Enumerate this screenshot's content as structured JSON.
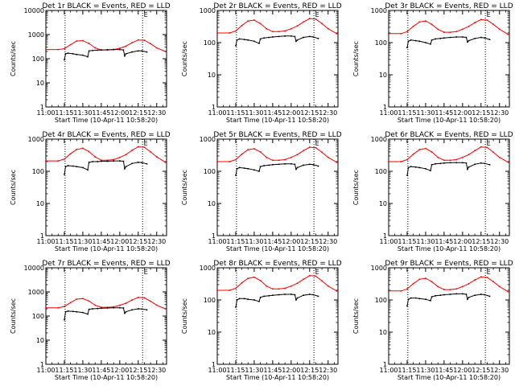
{
  "figure": {
    "x_tick_labels": [
      "11:00",
      "11:15",
      "11:30",
      "11:45",
      "12:00",
      "12:15",
      "12:30"
    ],
    "y_tick_labels": [
      "1",
      "10",
      "100",
      "1000",
      "10000"
    ],
    "vline_times_min": [
      15.6,
      78.5
    ],
    "colors": {
      "events": "#000000",
      "lld": "#ff0000",
      "axes": "#000000"
    }
  },
  "chart_data": [
    {
      "type": "line",
      "title": "Det 1r BLACK = Events, RED = LLD",
      "xlabel": "Start Time (10-Apr-11 10:58:20)",
      "ylabel": "Counts/sec",
      "xlim": [
        "11:00",
        "12:38"
      ],
      "ylim": [
        1,
        10000
      ],
      "yscale": "log",
      "ytop_label": "10000",
      "marker_label": "E",
      "series": [
        {
          "key": "LLD",
          "x": [
            "11:00",
            "11:10",
            "11:15",
            "11:20",
            "11:25",
            "11:30",
            "11:35",
            "11:40",
            "11:45",
            "11:50",
            "11:55",
            "12:00",
            "12:05",
            "12:10",
            "12:15",
            "12:20",
            "12:25",
            "12:30",
            "12:37"
          ],
          "y": [
            240,
            240,
            260,
            380,
            540,
            560,
            430,
            280,
            230,
            230,
            240,
            270,
            330,
            460,
            600,
            580,
            420,
            280,
            200
          ]
        },
        {
          "key": "Events",
          "x": [
            "11:15",
            "11:16",
            "11:18",
            "11:22",
            "11:25",
            "11:30",
            "11:34",
            "11:35",
            "11:38",
            "11:42",
            "11:45",
            "11:50",
            "11:55",
            "12:00",
            "12:03",
            "12:04",
            "12:05",
            "12:10",
            "12:15",
            "12:18",
            "12:22"
          ],
          "y": [
            90,
            160,
            170,
            160,
            150,
            140,
            120,
            210,
            220,
            225,
            230,
            235,
            240,
            240,
            230,
            130,
            160,
            190,
            210,
            210,
            190
          ]
        }
      ]
    },
    {
      "type": "line",
      "title": "Det 2r BLACK = Events, RED = LLD",
      "xlabel": "Start Time (10-Apr-11 10:58:20)",
      "ylabel": "Counts/sec",
      "xlim": [
        "11:00",
        "12:38"
      ],
      "ylim": [
        1,
        1000
      ],
      "yscale": "log",
      "ytop_label": "1000",
      "marker_label": "E",
      "series": [
        {
          "key": "LLD",
          "x": [
            "11:00",
            "11:10",
            "11:15",
            "11:20",
            "11:25",
            "11:30",
            "11:35",
            "11:40",
            "11:45",
            "11:50",
            "11:55",
            "12:00",
            "12:05",
            "12:10",
            "12:15",
            "12:20",
            "12:25",
            "12:30",
            "12:37"
          ],
          "y": [
            200,
            200,
            230,
            340,
            470,
            500,
            390,
            270,
            220,
            220,
            230,
            270,
            330,
            440,
            560,
            540,
            390,
            270,
            190
          ]
        },
        {
          "key": "Events",
          "x": [
            "11:15",
            "11:16",
            "11:18",
            "11:22",
            "11:25",
            "11:30",
            "11:34",
            "11:35",
            "11:38",
            "11:42",
            "11:45",
            "11:50",
            "11:55",
            "12:00",
            "12:03",
            "12:04",
            "12:05",
            "12:10",
            "12:15",
            "12:18",
            "12:22"
          ],
          "y": [
            80,
            120,
            130,
            125,
            120,
            110,
            95,
            130,
            140,
            145,
            150,
            155,
            160,
            160,
            155,
            110,
            120,
            145,
            155,
            150,
            135
          ]
        }
      ]
    },
    {
      "type": "line",
      "title": "Det 3r BLACK = Events, RED = LLD",
      "xlabel": "Start Time (10-Apr-11 10:58:20)",
      "ylabel": "Counts/sec",
      "xlim": [
        "11:00",
        "12:38"
      ],
      "ylim": [
        1,
        1000
      ],
      "yscale": "log",
      "ytop_label": "1000",
      "marker_label": "E",
      "series": [
        {
          "key": "LLD",
          "x": [
            "11:00",
            "11:10",
            "11:15",
            "11:20",
            "11:25",
            "11:30",
            "11:35",
            "11:40",
            "11:45",
            "11:50",
            "11:55",
            "12:00",
            "12:05",
            "12:10",
            "12:15",
            "12:20",
            "12:25",
            "12:30",
            "12:37"
          ],
          "y": [
            190,
            190,
            220,
            320,
            440,
            470,
            370,
            260,
            210,
            210,
            220,
            260,
            320,
            420,
            520,
            500,
            370,
            260,
            180
          ]
        },
        {
          "key": "Events",
          "x": [
            "11:15",
            "11:16",
            "11:18",
            "11:22",
            "11:25",
            "11:30",
            "11:34",
            "11:35",
            "11:38",
            "11:42",
            "11:45",
            "11:50",
            "11:55",
            "12:00",
            "12:03",
            "12:04",
            "12:05",
            "12:10",
            "12:15",
            "12:18",
            "12:22"
          ],
          "y": [
            70,
            110,
            120,
            115,
            110,
            100,
            90,
            120,
            130,
            135,
            140,
            145,
            150,
            150,
            145,
            105,
            115,
            135,
            145,
            140,
            125
          ]
        }
      ]
    },
    {
      "type": "line",
      "title": "Det 4r BLACK = Events, RED = LLD",
      "xlabel": "Start Time (10-Apr-11 10:58:20)",
      "ylabel": "Counts/sec",
      "xlim": [
        "11:00",
        "12:38"
      ],
      "ylim": [
        1,
        1000
      ],
      "yscale": "log",
      "ytop_label": "1000",
      "marker_label": "E",
      "series": [
        {
          "key": "LLD",
          "x": [
            "11:00",
            "11:10",
            "11:15",
            "11:20",
            "11:25",
            "11:30",
            "11:35",
            "11:40",
            "11:45",
            "11:50",
            "11:55",
            "12:00",
            "12:05",
            "12:10",
            "12:15",
            "12:20",
            "12:25",
            "12:30",
            "12:37"
          ],
          "y": [
            210,
            210,
            240,
            350,
            480,
            520,
            410,
            280,
            220,
            220,
            230,
            270,
            330,
            450,
            580,
            560,
            400,
            280,
            190
          ]
        },
        {
          "key": "Events",
          "x": [
            "11:15",
            "11:16",
            "11:18",
            "11:22",
            "11:25",
            "11:30",
            "11:34",
            "11:35",
            "11:38",
            "11:42",
            "11:45",
            "11:50",
            "11:55",
            "12:00",
            "12:03",
            "12:04",
            "12:05",
            "12:10",
            "12:15",
            "12:18",
            "12:22"
          ],
          "y": [
            80,
            140,
            150,
            145,
            140,
            130,
            110,
            190,
            200,
            200,
            205,
            205,
            210,
            210,
            205,
            120,
            140,
            175,
            190,
            185,
            170
          ]
        }
      ]
    },
    {
      "type": "line",
      "title": "Det 5r BLACK = Events, RED = LLD",
      "xlabel": "Start Time (10-Apr-11 10:58:20)",
      "ylabel": "Counts/sec",
      "xlim": [
        "11:00",
        "12:38"
      ],
      "ylim": [
        1,
        1000
      ],
      "yscale": "log",
      "ytop_label": "1000",
      "marker_label": "E",
      "series": [
        {
          "key": "LLD",
          "x": [
            "11:00",
            "11:10",
            "11:15",
            "11:20",
            "11:25",
            "11:30",
            "11:35",
            "11:40",
            "11:45",
            "11:50",
            "11:55",
            "12:00",
            "12:05",
            "12:10",
            "12:15",
            "12:20",
            "12:25",
            "12:30",
            "12:37"
          ],
          "y": [
            200,
            200,
            230,
            340,
            470,
            500,
            400,
            270,
            220,
            220,
            230,
            270,
            330,
            440,
            560,
            540,
            390,
            270,
            190
          ]
        },
        {
          "key": "Events",
          "x": [
            "11:15",
            "11:16",
            "11:18",
            "11:22",
            "11:25",
            "11:30",
            "11:34",
            "11:35",
            "11:38",
            "11:42",
            "11:45",
            "11:50",
            "11:55",
            "12:00",
            "12:03",
            "12:04",
            "12:05",
            "12:10",
            "12:15",
            "12:18",
            "12:22"
          ],
          "y": [
            75,
            120,
            130,
            125,
            120,
            110,
            100,
            140,
            150,
            155,
            160,
            165,
            170,
            170,
            165,
            115,
            130,
            155,
            165,
            160,
            145
          ]
        }
      ]
    },
    {
      "type": "line",
      "title": "Det 6r BLACK = Events, RED = LLD",
      "xlabel": "Start Time (10-Apr-11 10:58:20)",
      "ylabel": "Counts/sec",
      "xlim": [
        "11:00",
        "12:38"
      ],
      "ylim": [
        1,
        1000
      ],
      "yscale": "log",
      "ytop_label": "1000",
      "marker_label": "E",
      "series": [
        {
          "key": "LLD",
          "x": [
            "11:00",
            "11:10",
            "11:15",
            "11:20",
            "11:25",
            "11:30",
            "11:35",
            "11:40",
            "11:45",
            "11:50",
            "11:55",
            "12:00",
            "12:05",
            "12:10",
            "12:15",
            "12:20",
            "12:25",
            "12:30",
            "12:37"
          ],
          "y": [
            200,
            200,
            230,
            340,
            470,
            510,
            400,
            270,
            220,
            220,
            230,
            270,
            330,
            440,
            570,
            550,
            390,
            270,
            190
          ]
        },
        {
          "key": "Events",
          "x": [
            "11:15",
            "11:16",
            "11:18",
            "11:22",
            "11:25",
            "11:30",
            "11:34",
            "11:35",
            "11:38",
            "11:42",
            "11:45",
            "11:50",
            "11:55",
            "12:00",
            "12:03",
            "12:04",
            "12:05",
            "12:10",
            "12:15",
            "12:18",
            "12:22"
          ],
          "y": [
            75,
            130,
            140,
            135,
            130,
            120,
            105,
            160,
            170,
            175,
            180,
            185,
            185,
            185,
            180,
            115,
            135,
            165,
            180,
            175,
            160
          ]
        }
      ]
    },
    {
      "type": "line",
      "title": "Det 7r BLACK = Events, RED = LLD",
      "xlabel": "Start Time (10-Apr-11 10:58:20)",
      "ylabel": "Counts/sec",
      "xlim": [
        "11:00",
        "12:38"
      ],
      "ylim": [
        1,
        10000
      ],
      "yscale": "log",
      "ytop_label": "10000",
      "marker_label": "E",
      "series": [
        {
          "key": "LLD",
          "x": [
            "11:00",
            "11:10",
            "11:15",
            "11:20",
            "11:25",
            "11:30",
            "11:35",
            "11:40",
            "11:45",
            "11:50",
            "11:55",
            "12:00",
            "12:05",
            "12:10",
            "12:15",
            "12:20",
            "12:25",
            "12:30",
            "12:37"
          ],
          "y": [
            220,
            220,
            250,
            360,
            500,
            530,
            420,
            280,
            230,
            230,
            240,
            280,
            340,
            460,
            590,
            570,
            410,
            280,
            200
          ]
        },
        {
          "key": "Events",
          "x": [
            "11:15",
            "11:16",
            "11:18",
            "11:22",
            "11:25",
            "11:30",
            "11:34",
            "11:35",
            "11:38",
            "11:42",
            "11:45",
            "11:50",
            "11:55",
            "12:00",
            "12:03",
            "12:04",
            "12:05",
            "12:10",
            "12:15",
            "12:18",
            "12:22"
          ],
          "y": [
            70,
            150,
            160,
            155,
            150,
            140,
            120,
            190,
            200,
            205,
            210,
            215,
            220,
            220,
            215,
            130,
            150,
            180,
            200,
            195,
            180
          ]
        }
      ]
    },
    {
      "type": "line",
      "title": "Det 8r BLACK = Events, RED = LLD",
      "xlabel": "Start Time (10-Apr-11 10:58:20)",
      "ylabel": "Counts/sec",
      "xlim": [
        "11:00",
        "12:38"
      ],
      "ylim": [
        1,
        1000
      ],
      "yscale": "log",
      "ytop_label": "1000",
      "marker_label": "E",
      "series": [
        {
          "key": "LLD",
          "x": [
            "11:00",
            "11:10",
            "11:15",
            "11:20",
            "11:25",
            "11:30",
            "11:35",
            "11:40",
            "11:45",
            "11:50",
            "11:55",
            "12:00",
            "12:05",
            "12:10",
            "12:15",
            "12:20",
            "12:25",
            "12:30",
            "12:37"
          ],
          "y": [
            200,
            200,
            230,
            340,
            470,
            510,
            400,
            270,
            220,
            220,
            230,
            270,
            330,
            440,
            570,
            550,
            390,
            270,
            190
          ]
        },
        {
          "key": "Events",
          "x": [
            "11:15",
            "11:16",
            "11:18",
            "11:22",
            "11:25",
            "11:30",
            "11:34",
            "11:35",
            "11:38",
            "11:42",
            "11:45",
            "11:50",
            "11:55",
            "12:00",
            "12:03",
            "12:04",
            "12:05",
            "12:10",
            "12:15",
            "12:18",
            "12:22"
          ],
          "y": [
            60,
            100,
            110,
            110,
            105,
            100,
            90,
            120,
            130,
            135,
            140,
            145,
            150,
            150,
            145,
            100,
            115,
            140,
            150,
            145,
            130
          ]
        }
      ]
    },
    {
      "type": "line",
      "title": "Det 9r BLACK = Events, RED = LLD",
      "xlabel": "Start Time (10-Apr-11 10:58:20)",
      "ylabel": "Counts/sec",
      "xlim": [
        "11:00",
        "12:38"
      ],
      "ylim": [
        1,
        1000
      ],
      "yscale": "log",
      "ytop_label": "1000",
      "marker_label": "E",
      "series": [
        {
          "key": "LLD",
          "x": [
            "11:00",
            "11:10",
            "11:15",
            "11:20",
            "11:25",
            "11:30",
            "11:35",
            "11:40",
            "11:45",
            "11:50",
            "11:55",
            "12:00",
            "12:05",
            "12:10",
            "12:15",
            "12:20",
            "12:25",
            "12:30",
            "12:37"
          ],
          "y": [
            190,
            190,
            220,
            320,
            440,
            470,
            370,
            260,
            210,
            210,
            220,
            260,
            320,
            420,
            520,
            500,
            370,
            260,
            180
          ]
        },
        {
          "key": "Events",
          "x": [
            "11:15",
            "11:16",
            "11:18",
            "11:22",
            "11:25",
            "11:30",
            "11:34",
            "11:35",
            "11:38",
            "11:42",
            "11:45",
            "11:50",
            "11:55",
            "12:00",
            "12:03",
            "12:04",
            "12:05",
            "12:10",
            "12:15",
            "12:18",
            "12:22"
          ],
          "y": [
            65,
            105,
            115,
            115,
            110,
            105,
            95,
            125,
            135,
            140,
            145,
            150,
            155,
            155,
            150,
            105,
            120,
            140,
            150,
            145,
            130
          ]
        }
      ]
    }
  ]
}
